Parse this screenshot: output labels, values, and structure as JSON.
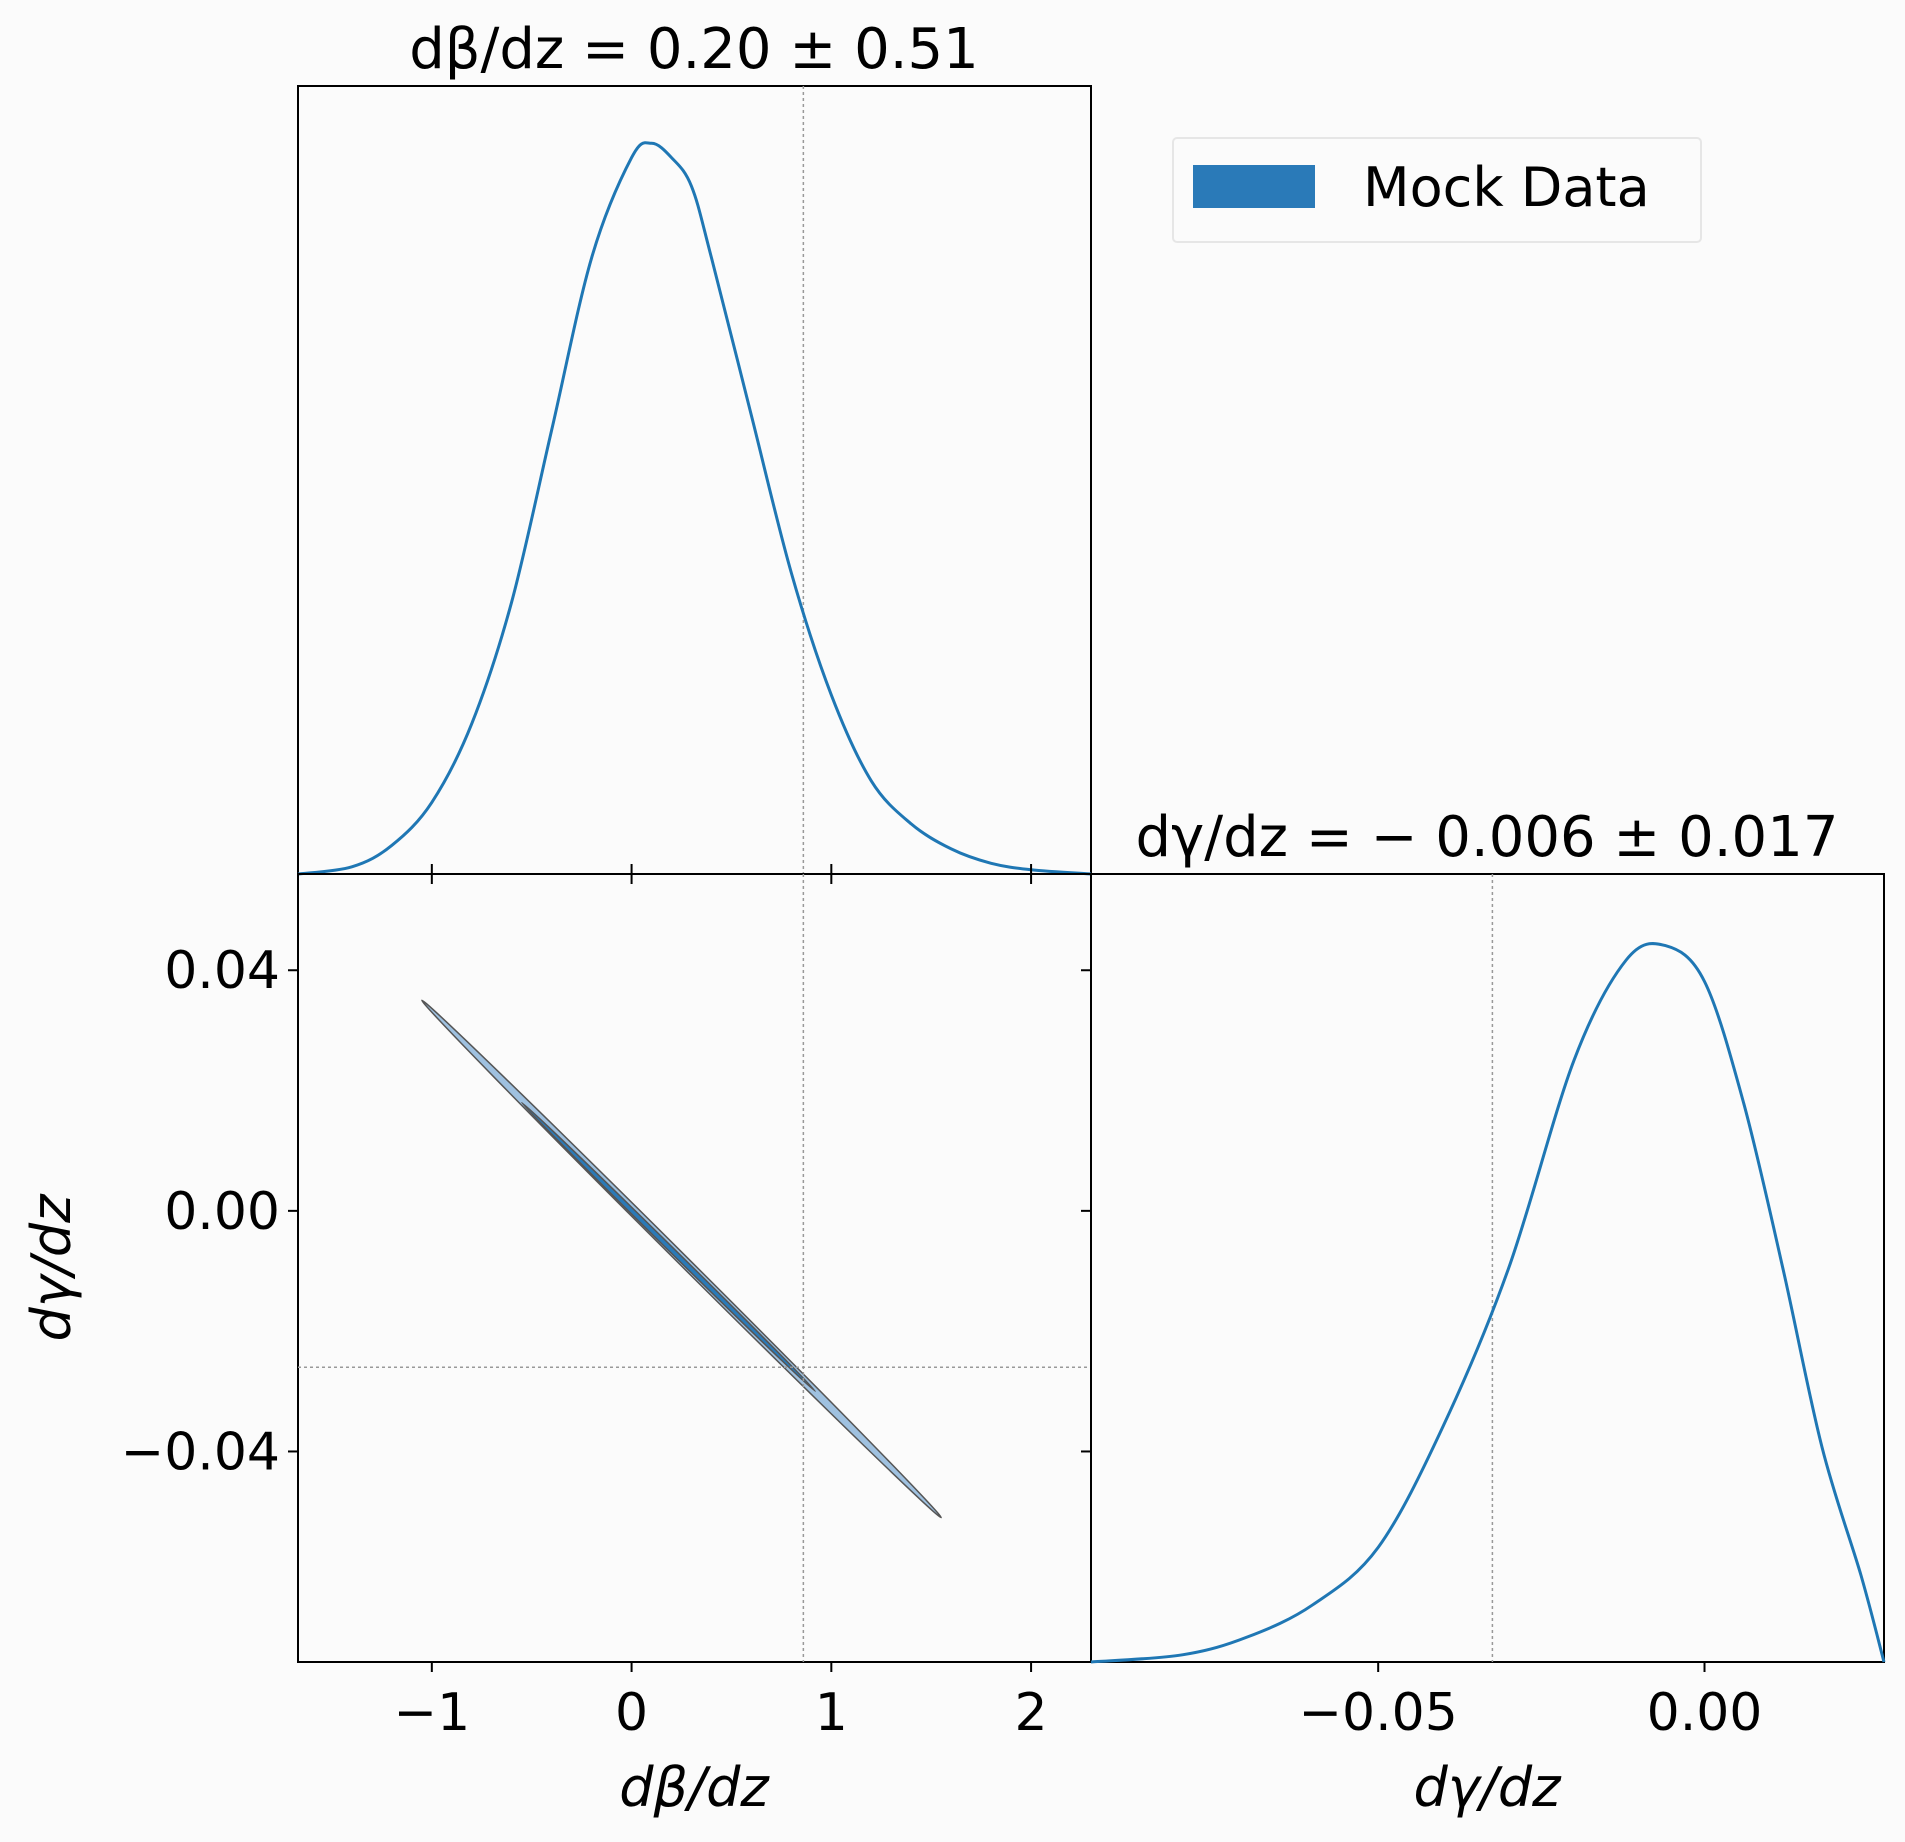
{
  "chart_data": [
    {
      "type": "line",
      "panel": "marginal-dbeta",
      "title": "dβ/dz = 0.20 ± 0.51",
      "xlabel": "dβ/dz",
      "ylabel": "",
      "xlim": [
        -1.67,
        2.3
      ],
      "ylim": [
        0,
        1.1
      ],
      "xticks": [
        -1,
        0,
        1,
        2
      ],
      "xtick_labels": [
        "−1",
        "0",
        "1",
        "2"
      ],
      "truth_x": 0.86,
      "series": [
        {
          "color": "#1f77b4",
          "x": [
            -1.67,
            -1.4,
            -1.2,
            -1.0,
            -0.8,
            -0.6,
            -0.4,
            -0.2,
            0.0,
            0.1,
            0.2,
            0.3,
            0.4,
            0.6,
            0.8,
            1.0,
            1.2,
            1.4,
            1.6,
            1.8,
            2.0,
            2.3
          ],
          "y": [
            0.0,
            0.01,
            0.04,
            0.1,
            0.21,
            0.38,
            0.62,
            0.86,
            1.0,
            1.02,
            1.0,
            0.96,
            0.86,
            0.64,
            0.42,
            0.25,
            0.13,
            0.07,
            0.035,
            0.015,
            0.006,
            0.0
          ]
        }
      ],
      "grid": false
    },
    {
      "type": "contour",
      "panel": "joint",
      "xlabel": "dβ/dz",
      "ylabel": "dγ/dz",
      "xlim": [
        -1.67,
        2.3
      ],
      "ylim": [
        -0.075,
        0.056
      ],
      "xticks": [
        -1,
        0,
        1,
        2
      ],
      "xtick_labels": [
        "−1",
        "0",
        "1",
        "2"
      ],
      "yticks": [
        0.04,
        0.0,
        -0.04
      ],
      "ytick_labels": [
        "0.04",
        "0.00",
        "−0.04"
      ],
      "truth_x": 0.86,
      "truth_y": -0.026,
      "contours": [
        {
          "level": "95%",
          "color": "#9fc1e0",
          "x1": -1.05,
          "y1": 0.035,
          "x2": 1.55,
          "y2": -0.051,
          "width": 0.05
        },
        {
          "level": "68%",
          "color": "#2a7ab8",
          "x1": -0.55,
          "y1": 0.018,
          "x2": 0.92,
          "y2": -0.03,
          "width": 0.025
        }
      ],
      "grid": false
    },
    {
      "type": "line",
      "panel": "marginal-dgamma",
      "title": "dγ/dz = − 0.006 ± 0.017",
      "xlabel": "dγ/dz",
      "ylabel": "",
      "xlim": [
        -0.094,
        0.0275
      ],
      "ylim": [
        0,
        1.1
      ],
      "xticks": [
        -0.05,
        0.0
      ],
      "xtick_labels": [
        "−0.05",
        "0.00"
      ],
      "truth_x": -0.0325,
      "series": [
        {
          "color": "#1f77b4",
          "x": [
            -0.094,
            -0.08,
            -0.07,
            -0.06,
            -0.05,
            -0.04,
            -0.03,
            -0.02,
            -0.012,
            -0.006,
            0.0,
            0.006,
            0.012,
            0.018,
            0.024,
            0.0275
          ],
          "y": [
            0.0,
            0.01,
            0.035,
            0.08,
            0.16,
            0.33,
            0.55,
            0.84,
            0.98,
            1.0,
            0.95,
            0.78,
            0.55,
            0.3,
            0.12,
            0.0
          ]
        }
      ],
      "grid": false
    }
  ],
  "legend": {
    "placement": "top-right",
    "entries": [
      {
        "label": "Mock Data",
        "color": "#2a7ab8"
      }
    ]
  }
}
